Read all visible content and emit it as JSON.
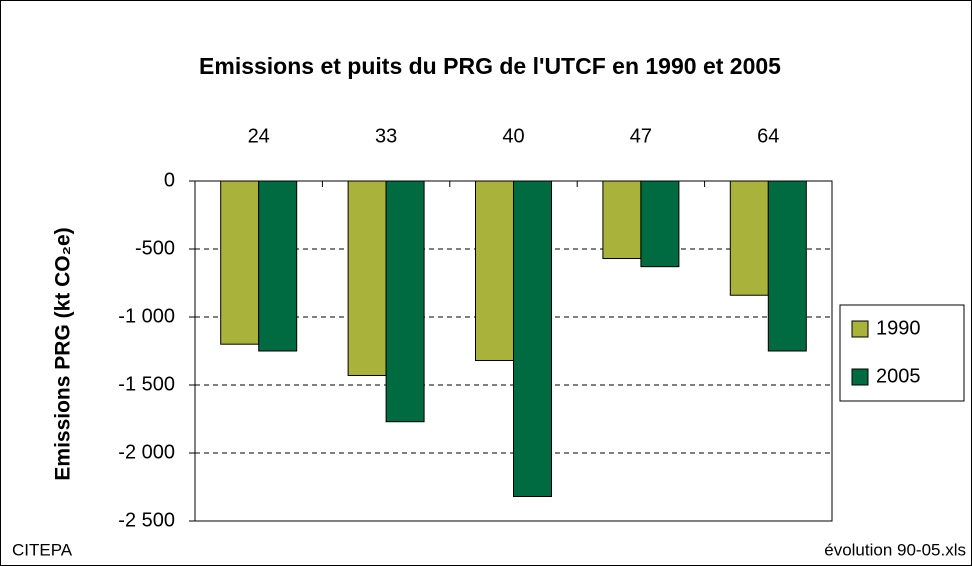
{
  "chart_data": {
    "type": "bar",
    "title": "Emissions et puits du PRG de l'UTCF en 1990 et 2005",
    "y_label": "Emissions PRG (kt CO₂e)",
    "categories": [
      "24",
      "33",
      "40",
      "47",
      "64"
    ],
    "series": [
      {
        "name": "1990",
        "color": "#a9b33c",
        "values": [
          -1200,
          -1430,
          -1320,
          -570,
          -840
        ]
      },
      {
        "name": "2005",
        "color": "#006b40",
        "values": [
          -1250,
          -1770,
          -2320,
          -630,
          -1250
        ]
      }
    ],
    "ylim": [
      -2500,
      0
    ],
    "yticks": [
      0,
      -500,
      {
        "value": -1000,
        "label": "-1 000"
      },
      {
        "value": -1500,
        "label": "-1 500"
      },
      {
        "value": -2000,
        "label": "-2 000"
      },
      {
        "value": -2500,
        "label": "-2 500"
      }
    ],
    "grid": true,
    "legend": "right",
    "source": "CITEPA",
    "file": "évolution 90-05.xls"
  }
}
